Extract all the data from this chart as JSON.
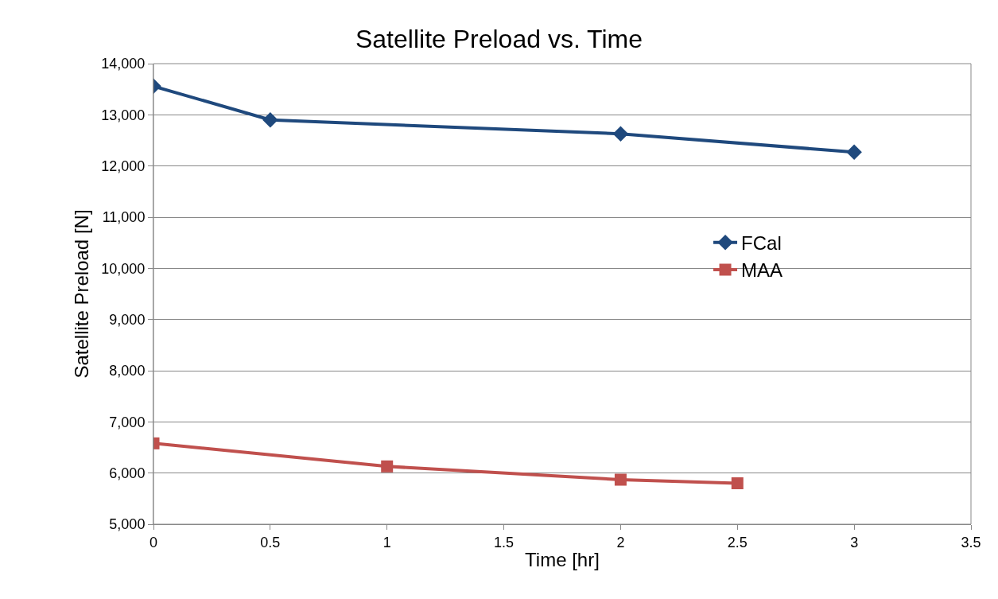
{
  "chart_data": {
    "type": "line",
    "title": "Satellite Preload vs. Time",
    "xlabel": "Time [hr]",
    "ylabel": "Satellite Preload [N]",
    "series": [
      {
        "name": "FCal",
        "color": "#1f497d",
        "x": [
          0,
          0.5,
          2,
          3
        ],
        "values": [
          13560,
          12900,
          12630,
          12270
        ],
        "marker": "diamond"
      },
      {
        "name": "MAA",
        "color": "#c0504d",
        "x": [
          0,
          1,
          2,
          2.5
        ],
        "values": [
          6580,
          6130,
          5870,
          5800
        ],
        "marker": "square"
      }
    ],
    "xlim": [
      0,
      3.5
    ],
    "xticks": [
      0,
      0.5,
      1,
      1.5,
      2,
      2.5,
      3,
      3.5
    ],
    "ylim": [
      5000,
      14000
    ],
    "yticks": [
      {
        "value": 5000,
        "label": "5,000"
      },
      {
        "value": 6000,
        "label": "6,000"
      },
      {
        "value": 7000,
        "label": "7,000"
      },
      {
        "value": 8000,
        "label": "8,000"
      },
      {
        "value": 9000,
        "label": "9,000"
      },
      {
        "value": 10000,
        "label": "10,000"
      },
      {
        "value": 11000,
        "label": "11,000"
      },
      {
        "value": 12000,
        "label": "12,000"
      },
      {
        "value": 13000,
        "label": "13,000"
      },
      {
        "value": 14000,
        "label": "14,000"
      }
    ],
    "grid": "y",
    "legend": "right",
    "line_style": "solid"
  }
}
